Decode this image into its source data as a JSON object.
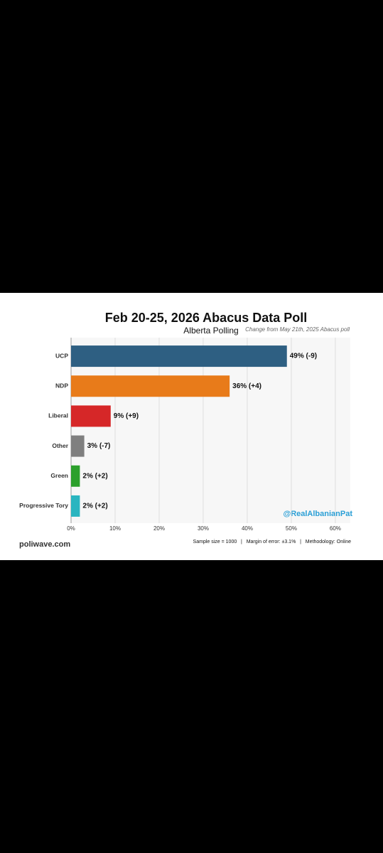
{
  "chart_data": {
    "type": "hbar",
    "title": "Feb 20-25, 2026 Abacus Data Poll",
    "subtitle": "Alberta Polling",
    "note": "Change from May 21th, 2025 Abacus poll",
    "categories": [
      "UCP",
      "NDP",
      "Liberal",
      "Other",
      "Green",
      "Progressive Tory"
    ],
    "values": [
      49,
      36,
      9,
      3,
      2,
      2
    ],
    "value_labels": [
      "49% (-9)",
      "36% (+4)",
      "9% (+9)",
      "3% (-7)",
      "2% (+2)",
      "2% (+2)"
    ],
    "colors": [
      "#2e5f82",
      "#e87b1a",
      "#d62728",
      "#7f7f7f",
      "#2ca02c",
      "#2ab5c0"
    ],
    "xlim": [
      0,
      63.4
    ],
    "xticks": [
      {
        "value": 0,
        "label": "0%"
      },
      {
        "value": 10,
        "label": "10%"
      },
      {
        "value": 20,
        "label": "20%"
      },
      {
        "value": 30,
        "label": "30%"
      },
      {
        "value": 40,
        "label": "40%"
      },
      {
        "value": 50,
        "label": "50%"
      },
      {
        "value": 60,
        "label": "60%"
      }
    ],
    "grid": true,
    "watermark": "@RealAlbanianPat",
    "source": "poliwave.com",
    "footer": "Sample size = 1000   |   Margin of error: ±3.1%   |   Methodology: Online"
  }
}
